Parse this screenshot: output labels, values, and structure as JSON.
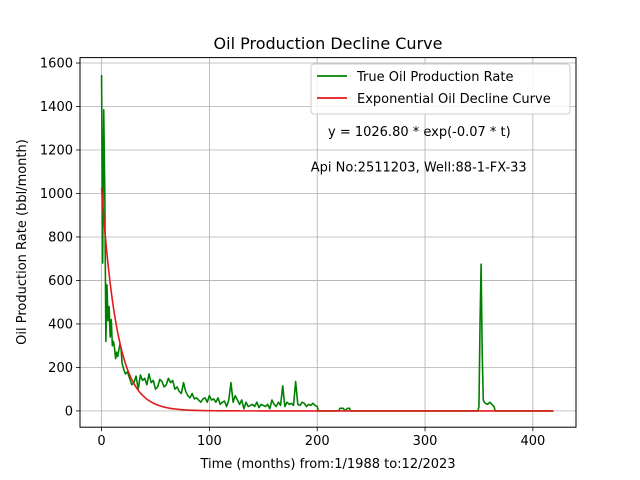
{
  "chart_data": {
    "type": "line",
    "title": "Oil Production Decline Curve",
    "xlabel": "Time (months) from:1/1988 to:12/2023",
    "ylabel": "Oil Production Rate (bbl/month)",
    "xlim": [
      -20,
      440
    ],
    "ylim": [
      -75,
      1625
    ],
    "xticks": [
      0,
      100,
      200,
      300,
      400
    ],
    "yticks": [
      0,
      200,
      400,
      600,
      800,
      1000,
      1200,
      1400,
      1600
    ],
    "grid": true,
    "legend_position": "top-right",
    "annotations": [
      {
        "text": "y = 1026.80 * exp(-0.07 * t)",
        "x": 210,
        "y": 1265
      },
      {
        "text": "Api No:2511203, Well:88-1-FX-33",
        "x": 194,
        "y": 1100
      }
    ],
    "series": [
      {
        "name": "True Oil Production Rate",
        "color": "#008000",
        "x": [
          0,
          1,
          2,
          3,
          4,
          5,
          6,
          7,
          8,
          9,
          10,
          11,
          12,
          13,
          14,
          15,
          16,
          17,
          18,
          19,
          20,
          22,
          24,
          26,
          28,
          30,
          32,
          34,
          36,
          38,
          40,
          42,
          44,
          46,
          48,
          50,
          52,
          54,
          56,
          58,
          60,
          62,
          64,
          66,
          68,
          70,
          72,
          74,
          76,
          78,
          80,
          82,
          84,
          86,
          88,
          90,
          92,
          94,
          96,
          98,
          100,
          102,
          104,
          106,
          108,
          110,
          112,
          114,
          116,
          118,
          120,
          122,
          124,
          126,
          128,
          130,
          132,
          134,
          136,
          138,
          140,
          142,
          144,
          146,
          148,
          150,
          152,
          154,
          156,
          158,
          160,
          162,
          164,
          166,
          168,
          170,
          172,
          174,
          176,
          178,
          180,
          182,
          184,
          186,
          188,
          190,
          192,
          194,
          196,
          198,
          200,
          201,
          210,
          220,
          221,
          222,
          224,
          226,
          228,
          230,
          231,
          240,
          260,
          280,
          300,
          320,
          340,
          349,
          350,
          351,
          352,
          353,
          354,
          355,
          356,
          358,
          360,
          362,
          364,
          365,
          366,
          400,
          419
        ],
        "values": [
          1545,
          680,
          1385,
          1000,
          320,
          580,
          415,
          480,
          340,
          420,
          300,
          320,
          290,
          240,
          270,
          250,
          280,
          305,
          290,
          220,
          200,
          170,
          180,
          150,
          120,
          130,
          160,
          100,
          165,
          140,
          150,
          120,
          170,
          130,
          140,
          100,
          110,
          145,
          135,
          110,
          120,
          150,
          130,
          140,
          100,
          110,
          90,
          80,
          130,
          90,
          70,
          60,
          80,
          55,
          60,
          50,
          40,
          55,
          60,
          40,
          70,
          50,
          55,
          40,
          60,
          30,
          40,
          45,
          20,
          50,
          130,
          40,
          70,
          50,
          30,
          50,
          10,
          40,
          20,
          25,
          30,
          20,
          40,
          15,
          30,
          25,
          20,
          30,
          10,
          50,
          30,
          20,
          40,
          25,
          115,
          20,
          40,
          30,
          35,
          25,
          135,
          30,
          25,
          40,
          35,
          20,
          30,
          25,
          35,
          25,
          20,
          0,
          0,
          0,
          12,
          12,
          12,
          0,
          12,
          12,
          0,
          0,
          0,
          0,
          0,
          0,
          0,
          0,
          20,
          400,
          675,
          270,
          50,
          40,
          35,
          30,
          40,
          30,
          20,
          0,
          0,
          0,
          0
        ]
      },
      {
        "name": "Exponential Oil Decline Curve",
        "color": "#e31a1c",
        "function": "y = 1026.80 * exp(-0.07 * t)",
        "amplitude": 1026.8,
        "decay": 0.07,
        "x_range": [
          0,
          419
        ]
      }
    ]
  }
}
